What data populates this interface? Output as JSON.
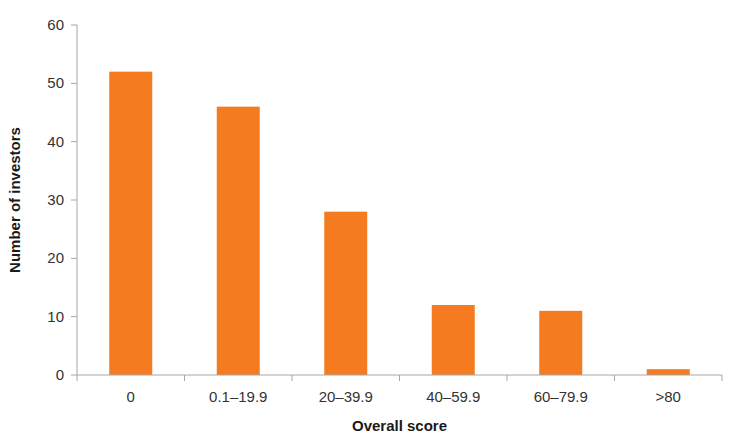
{
  "chart_data": {
    "type": "bar",
    "x_label": "Overall score",
    "y_label": "Number of investors",
    "categories": [
      "0",
      "0.1–19.9",
      "20–39.9",
      "40–59.9",
      "60–79.9",
      ">80"
    ],
    "values": [
      52,
      46,
      28,
      12,
      11,
      1
    ],
    "color": "#f57b20",
    "ylim": [
      0,
      60
    ],
    "yticks": [
      0,
      10,
      20,
      30,
      40,
      50,
      60
    ],
    "grid": false
  }
}
